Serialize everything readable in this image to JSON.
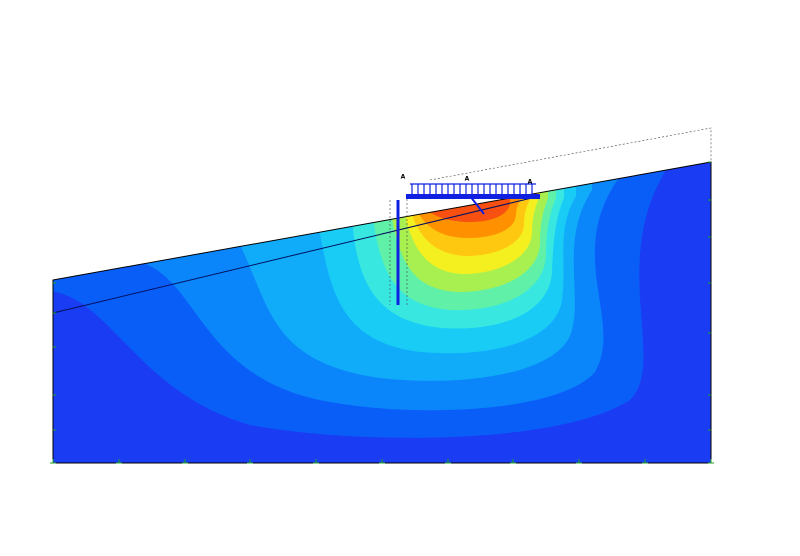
{
  "load_labels": [
    "A",
    "A",
    "A"
  ]
}
